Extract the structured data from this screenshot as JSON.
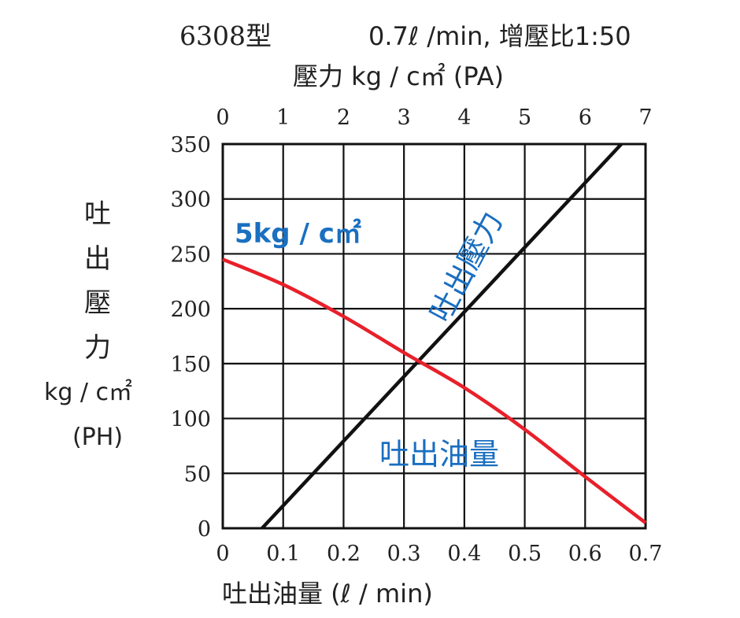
{
  "chart_data": {
    "type": "line",
    "header": {
      "model": "6308型",
      "spec": "0.7ℓ /min, 增壓比1:50"
    },
    "top_axis": {
      "label": "壓力  kg / c㎡ (PA)",
      "range": [
        0,
        7
      ],
      "ticks": [
        "0",
        "1",
        "2",
        "3",
        "4",
        "5",
        "6",
        "7"
      ]
    },
    "left_axis": {
      "label_lines": [
        "吐",
        "出",
        "壓",
        "力",
        "kg / c㎡",
        "(PH)"
      ],
      "range": [
        0,
        350
      ],
      "ticks": [
        "0",
        "50",
        "100",
        "150",
        "200",
        "250",
        "300",
        "350"
      ]
    },
    "bottom_axis": {
      "label": "吐出油量  (ℓ / min)",
      "range": [
        0,
        0.7
      ],
      "ticks": [
        "0",
        "0.1",
        "0.2",
        "0.3",
        "0.4",
        "0.5",
        "0.6",
        "0.7"
      ]
    },
    "grid": true,
    "series": [
      {
        "name": "吐出壓力",
        "color": "#111111",
        "x_axis": "top",
        "y_axis": "left",
        "points": [
          [
            0.65,
            0
          ],
          [
            6.6,
            350
          ]
        ]
      },
      {
        "name": "吐出油量",
        "color": "#e8202a",
        "x_axis": "bottom",
        "y_axis": "left",
        "points": [
          [
            0,
            245
          ],
          [
            0.1,
            222
          ],
          [
            0.2,
            193
          ],
          [
            0.3,
            160
          ],
          [
            0.4,
            128
          ],
          [
            0.5,
            90
          ],
          [
            0.6,
            47
          ],
          [
            0.7,
            5
          ]
        ]
      }
    ],
    "annotations": {
      "pressure_condition": "5kg / c㎡",
      "pressure_label": "吐出壓力",
      "flow_label": "吐出油量",
      "color": "#1a6fc0"
    }
  }
}
